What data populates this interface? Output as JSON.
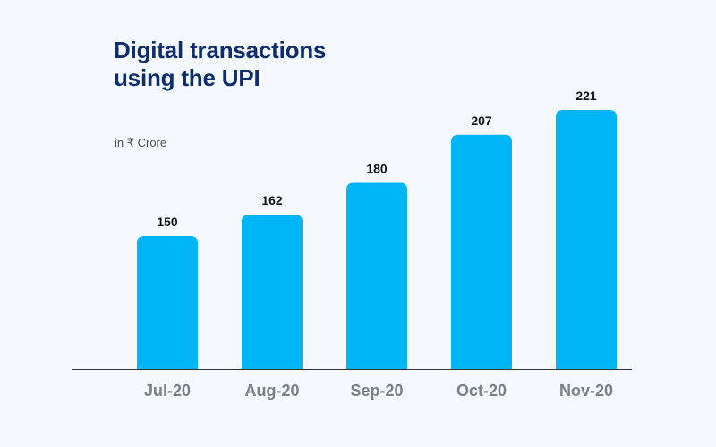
{
  "chart_data": {
    "type": "bar",
    "title": "Digital transactions using the UPI",
    "subtitle": "in ₹ Crore",
    "categories": [
      "Jul-20",
      "Aug-20",
      "Sep-20",
      "Oct-20",
      "Nov-20"
    ],
    "values": [
      150,
      162,
      180,
      207,
      221
    ],
    "ylim": [
      75,
      221
    ],
    "xlabel": "",
    "ylabel": "",
    "grid": false,
    "legend": "none",
    "colors": {
      "bar": "#00b5f5",
      "title": "#0d2d6b",
      "baseline": "#333333",
      "tick_text": "#7b7f87",
      "value_text": "#111111"
    }
  }
}
